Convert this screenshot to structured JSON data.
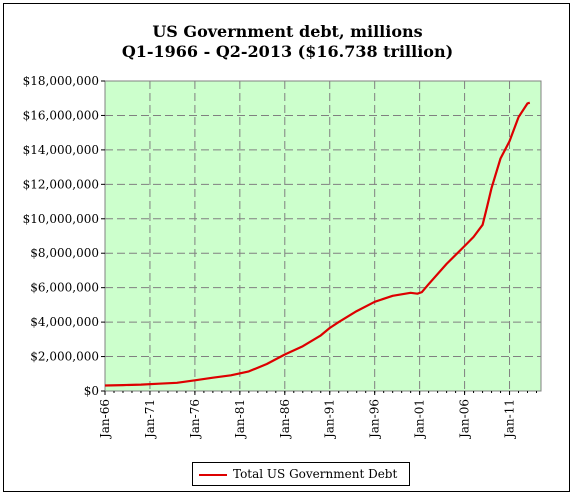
{
  "chart_data": {
    "type": "line",
    "title": "US Government debt, millions",
    "subtitle": "Q1-1966 - Q2-2013 ($16.738 trillion)",
    "xlabel": "",
    "ylabel": "",
    "x_tick_labels": [
      "Jan-66",
      "Jan-71",
      "Jan-76",
      "Jan-81",
      "Jan-86",
      "Jan-91",
      "Jan-96",
      "Jan-01",
      "Jan-06",
      "Jan-11"
    ],
    "y_tick_labels": [
      "$0",
      "$2,000,000",
      "$4,000,000",
      "$6,000,000",
      "$8,000,000",
      "$10,000,000",
      "$12,000,000",
      "$14,000,000",
      "$16,000,000",
      "$18,000,000"
    ],
    "ylim": [
      0,
      18000000
    ],
    "xlim": [
      1966.0,
      2014.5
    ],
    "grid": true,
    "legend_position": "bottom",
    "colors": {
      "plot_background": "#ccffcc",
      "series": "#dd0000",
      "grid": "#808080"
    },
    "series": [
      {
        "name": "Total US Government Debt",
        "x": [
          1966.0,
          1968.0,
          1970.0,
          1972.0,
          1974.0,
          1976.0,
          1978.0,
          1980.0,
          1982.0,
          1984.0,
          1986.0,
          1988.0,
          1990.0,
          1991.0,
          1992.0,
          1994.0,
          1996.0,
          1998.0,
          2000.0,
          2000.75,
          2001.25,
          2002.0,
          2004.0,
          2006.0,
          2007.0,
          2008.0,
          2008.5,
          2009.0,
          2010.0,
          2011.0,
          2012.0,
          2013.0,
          2013.25
        ],
        "values": [
          320000,
          345000,
          370000,
          425000,
          475000,
          620000,
          770000,
          910000,
          1140000,
          1570000,
          2120000,
          2600000,
          3230000,
          3660000,
          4000000,
          4640000,
          5180000,
          5530000,
          5700000,
          5650000,
          5740000,
          6200000,
          7380000,
          8420000,
          8950000,
          9650000,
          10700000,
          11800000,
          13500000,
          14500000,
          15900000,
          16700000,
          16740000
        ]
      }
    ]
  }
}
